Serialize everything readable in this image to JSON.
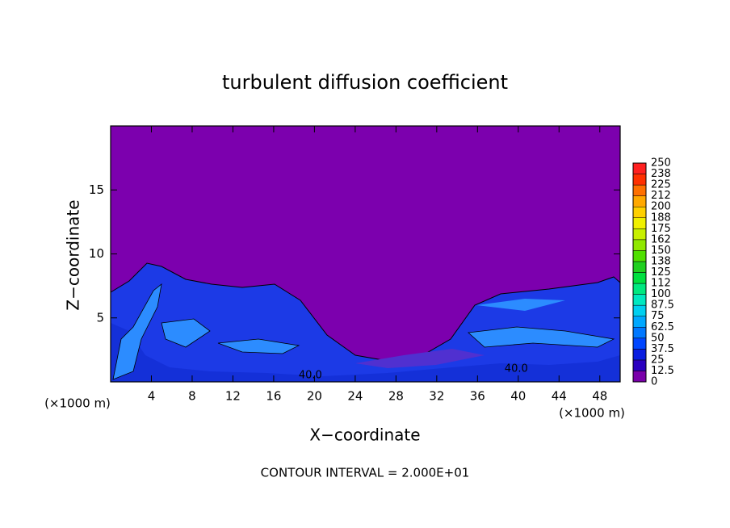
{
  "chart_data": {
    "type": "contour",
    "title": "turbulent diffusion coefficient",
    "xlabel": "X−coordinate",
    "ylabel": "Z−coordinate",
    "x_unit_label": "(×1000 m)",
    "footer": "CONTOUR INTERVAL = 2.000E+01",
    "xlim": [
      0,
      50
    ],
    "ylim": [
      0,
      20
    ],
    "xticks": [
      4,
      8,
      12,
      16,
      20,
      24,
      28,
      32,
      36,
      40,
      44,
      48
    ],
    "yticks": [
      5,
      10,
      15
    ],
    "levels": [
      0,
      12.5,
      25,
      37.5,
      50,
      62.5,
      75,
      87.5,
      100,
      112,
      125,
      138,
      150,
      162,
      175,
      188,
      200,
      212,
      225,
      238,
      250
    ],
    "level_colors": [
      "#7a00aa",
      "#2a00c0",
      "#0a1ee0",
      "#0046ff",
      "#0078ff",
      "#00a8ff",
      "#00d0f0",
      "#00e8c0",
      "#00e880",
      "#00e040",
      "#20d020",
      "#50e000",
      "#90e800",
      "#c8f000",
      "#f0f000",
      "#ffd000",
      "#ffa800",
      "#ff7000",
      "#ff3000",
      "#ff2020"
    ],
    "contour_labels": [
      {
        "value": 40,
        "label": "40.0",
        "x": 19.6,
        "y": 0.5
      },
      {
        "value": 40,
        "label": "40.0",
        "x": 39.8,
        "y": 1.0
      }
    ]
  }
}
